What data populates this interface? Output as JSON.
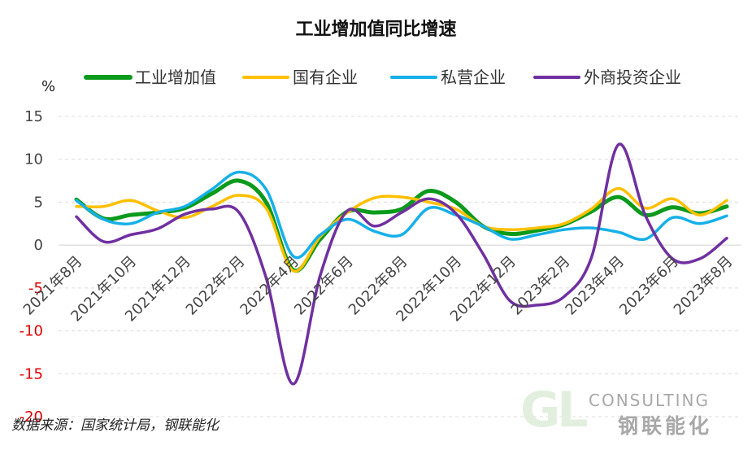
{
  "title": "工业增加值同比增速",
  "source": "数据来源：国家统计局，钢联能化",
  "logo": {
    "mark": "GL",
    "consulting": "CONSULTING",
    "cn": "钢联能化"
  },
  "chart_data": {
    "type": "line",
    "title": "工业增加值同比增速",
    "ylabel": "%",
    "ylim": [
      -20,
      15
    ],
    "yticks": [
      15,
      10,
      5,
      0,
      -5,
      -10,
      -15,
      -20
    ],
    "negative_tick_color": "#e00000",
    "grid": true,
    "legend_position": "top",
    "x_tick_labels": [
      "2021年8月",
      "2021年10月",
      "2021年12月",
      "2022年2月",
      "2022年4月",
      "2022年6月",
      "2022年8月",
      "2022年10月",
      "2022年12月",
      "2023年2月",
      "2023年4月",
      "2023年6月",
      "2023年8月"
    ],
    "x": [
      "2021-08",
      "2021-09",
      "2021-10",
      "2021-11",
      "2021-12",
      "2022-01",
      "2022-02",
      "2022-03",
      "2022-04",
      "2022-05",
      "2022-06",
      "2022-07",
      "2022-08",
      "2022-09",
      "2022-10",
      "2022-11",
      "2022-12",
      "2023-01",
      "2023-02",
      "2023-03",
      "2023-04",
      "2023-05",
      "2023-06",
      "2023-07",
      "2023-08"
    ],
    "series": [
      {
        "name": "工业增加值",
        "color": "#0b9a1c",
        "values": [
          5.3,
          3.1,
          3.5,
          3.8,
          4.3,
          6.0,
          7.5,
          5.0,
          -2.9,
          0.7,
          3.9,
          3.8,
          4.2,
          6.3,
          5.0,
          2.2,
          1.3,
          1.7,
          2.4,
          3.9,
          5.6,
          3.5,
          4.4,
          3.7,
          4.5
        ]
      },
      {
        "name": "国有企业",
        "color": "#ffc000",
        "values": [
          4.5,
          4.5,
          5.2,
          4.0,
          3.2,
          4.5,
          5.8,
          4.3,
          -3.0,
          1.0,
          3.8,
          5.5,
          5.6,
          5.0,
          4.2,
          2.2,
          1.8,
          2.0,
          2.5,
          4.2,
          6.6,
          4.3,
          5.4,
          3.5,
          5.2
        ]
      },
      {
        "name": "私营企业",
        "color": "#16b0e8",
        "values": [
          5.2,
          3.0,
          2.5,
          3.8,
          4.5,
          6.5,
          8.5,
          6.5,
          -1.3,
          1.2,
          3.0,
          1.6,
          1.2,
          4.3,
          3.5,
          2.2,
          0.7,
          1.2,
          1.8,
          2.0,
          1.5,
          0.7,
          3.2,
          2.5,
          3.4
        ]
      },
      {
        "name": "外商投资企业",
        "color": "#7030a0",
        "values": [
          3.3,
          0.4,
          1.2,
          1.9,
          3.6,
          4.2,
          3.8,
          -3.8,
          -16.2,
          -3.5,
          4.0,
          2.2,
          3.8,
          5.4,
          3.7,
          -1.0,
          -6.5,
          -7.0,
          -6.0,
          -1.5,
          11.7,
          3.4,
          -1.6,
          -1.6,
          0.8
        ]
      }
    ]
  }
}
